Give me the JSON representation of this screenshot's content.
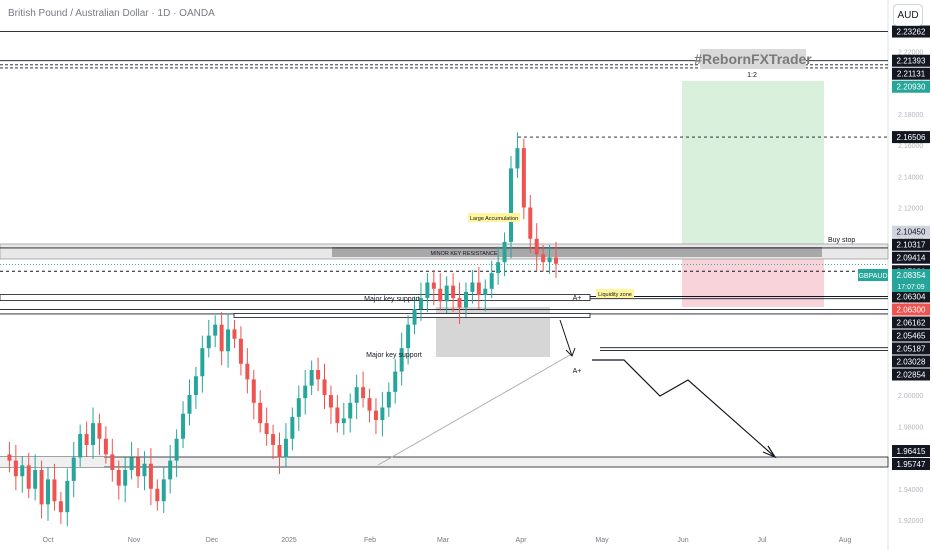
{
  "header": {
    "title": "British Pound / Australian Dollar · 1D · OANDA",
    "currency": "AUD"
  },
  "watermark": "#RebornFXTrader",
  "annotations": {
    "ratio": "1:2",
    "buy_stop": "Buy stop",
    "large_accumulation": "Large Accumulation",
    "minor_resistance": "MINOR KEY RESISTANCE",
    "liquidity_zone": "Liquidity zone",
    "major_support_1": "Major key support",
    "major_support_2": "Major key support",
    "a_plus_1": "A+",
    "a_plus_2": "A+"
  },
  "symbol_label": {
    "symbol": "GBPAUD",
    "price": "2.08354",
    "countdown": "17:07:09"
  },
  "colors": {
    "up": "#26a69a",
    "down": "#ef5350",
    "target_zone": "#c8e6c9",
    "stop_zone": "#f8bbd0",
    "level_label_bg": "#131722",
    "current_price_bg": "#26a69a",
    "highlight_red_bg": "#ef5350",
    "highlight_green_bg": "#26a69a"
  },
  "chart_data": {
    "type": "candlestick",
    "symbol": "GBPAUD",
    "timeframe": "1D",
    "source": "OANDA",
    "ylim": [
      1.92,
      2.24
    ],
    "y_ticks": [
      "1.92000",
      "1.94000",
      "1.96000",
      "1.98000",
      "2.00000",
      "2.02000",
      "2.04000",
      "2.06000",
      "2.08000",
      "2.10000",
      "2.12000",
      "2.14000",
      "2.16000",
      "2.18000",
      "2.20000",
      "2.22000"
    ],
    "x_ticks": [
      "Oct",
      "Nov",
      "Dec",
      "2025",
      "Feb",
      "Mar",
      "Apr",
      "May",
      "Jun",
      "Jul",
      "Aug"
    ],
    "price_levels": [
      {
        "value": "2.23262",
        "style": "dark"
      },
      {
        "value": "2.21393",
        "style": "dark"
      },
      {
        "value": "2.21131",
        "style": "dark"
      },
      {
        "value": "2.20930",
        "style": "green"
      },
      {
        "value": "2.16506",
        "style": "dark"
      },
      {
        "value": "2.10450",
        "style": "gray"
      },
      {
        "value": "2.10317",
        "style": "dark"
      },
      {
        "value": "2.09414",
        "style": "dark"
      },
      {
        "value": "2.08354",
        "style": "current"
      },
      {
        "value": "2.07920",
        "style": "dark"
      },
      {
        "value": "2.06304",
        "style": "dark"
      },
      {
        "value": "2.06300",
        "style": "red"
      },
      {
        "value": "2.06162",
        "style": "dark"
      },
      {
        "value": "2.05465",
        "style": "dark"
      },
      {
        "value": "2.05187",
        "style": "dark"
      },
      {
        "value": "2.03028",
        "style": "dark"
      },
      {
        "value": "2.02854",
        "style": "dark"
      },
      {
        "value": "1.96415",
        "style": "dark"
      },
      {
        "value": "1.95747",
        "style": "dark"
      }
    ],
    "series": [
      {
        "name": "GBPAUD",
        "path": [
          1.962,
          1.958,
          1.948,
          1.955,
          1.94,
          1.952,
          1.93,
          1.946,
          1.932,
          1.925,
          1.945,
          1.96,
          1.975,
          1.968,
          1.982,
          1.972,
          1.962,
          1.952,
          1.942,
          1.952,
          1.96,
          1.948,
          1.956,
          1.94,
          1.932,
          1.946,
          1.958,
          1.972,
          1.988,
          2.0,
          2.012,
          2.03,
          2.038,
          2.045,
          2.028,
          2.042,
          2.036,
          2.02,
          2.01,
          1.995,
          1.982,
          1.975,
          1.968,
          1.96,
          1.972,
          1.986,
          1.998,
          2.006,
          2.016,
          2.01,
          2.0,
          1.992,
          1.982,
          1.985,
          1.995,
          2.005,
          1.998,
          1.99,
          1.984,
          1.992,
          2.002,
          2.015,
          2.03,
          2.045,
          2.055,
          2.062,
          2.072,
          2.068,
          2.06,
          2.07,
          2.062,
          2.056,
          2.066,
          2.072,
          2.064,
          2.068,
          2.078,
          2.085,
          2.098,
          2.145,
          2.158,
          2.12,
          2.1,
          2.09,
          2.085,
          2.088,
          2.084
        ]
      }
    ]
  }
}
